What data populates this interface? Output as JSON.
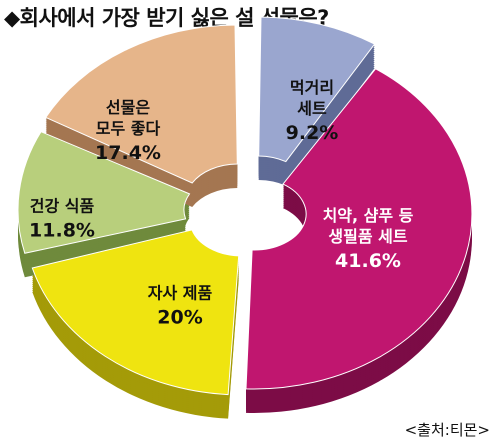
{
  "title": "◆회사에서 가장 받기 싫은 설 선물은?",
  "source": "<출처:티몬>",
  "chart_data": {
    "type": "pie",
    "title": "◆회사에서 가장 받기 싫은 설 선물은?",
    "series": [
      {
        "name": "",
        "slices": [
          {
            "label": [
              "먹거리",
              "세트"
            ],
            "value": 9.2,
            "display": "9.2%",
            "color": "#9aa6cf",
            "side": "#5f6b96"
          },
          {
            "label": [
              "치약, 샴푸 등",
              "생필품 세트"
            ],
            "value": 41.6,
            "display": "41.6%",
            "color": "#c0166f",
            "side": "#7c0c46"
          },
          {
            "label": [
              "자사 제품"
            ],
            "value": 20,
            "display": "20%",
            "color": "#efe410",
            "side": "#a49b08"
          },
          {
            "label": [
              "건강 식품"
            ],
            "value": 11.8,
            "display": "11.8%",
            "color": "#b8cf7c",
            "side": "#6f8a3c"
          },
          {
            "label": [
              "선물은",
              "모두 좋다"
            ],
            "value": 17.4,
            "display": "17.4%",
            "color": "#e6b58a",
            "side": "#a47651"
          }
        ]
      }
    ],
    "legend": "none"
  }
}
